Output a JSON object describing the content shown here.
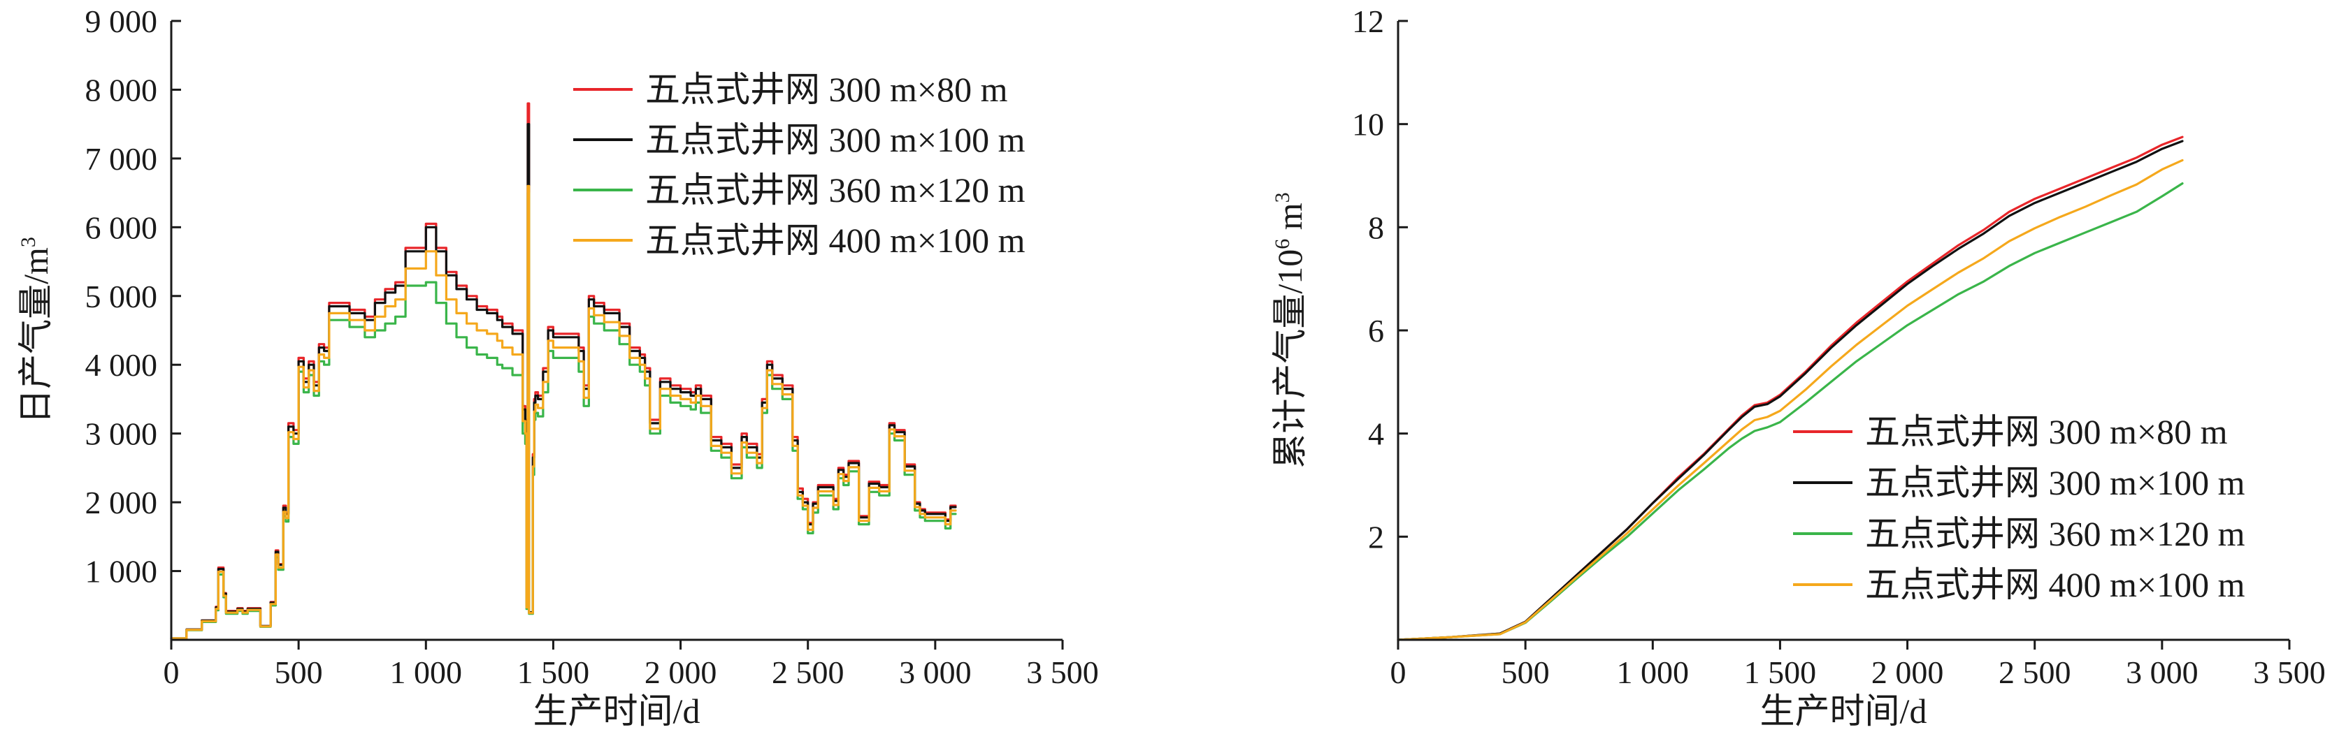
{
  "chart_data": [
    {
      "type": "line",
      "xlabel": "生产时间/d",
      "ylabel": "日产气量/m3",
      "xlim": [
        0,
        3500
      ],
      "ylim": [
        0,
        9000
      ],
      "xticks": [
        0,
        500,
        1000,
        1500,
        2000,
        2500,
        3000,
        3500
      ],
      "xtick_labels": [
        "0",
        "500",
        "1 000",
        "1 500",
        "2 000",
        "2 500",
        "3 000",
        "3 500"
      ],
      "yticks": [
        1000,
        2000,
        3000,
        4000,
        5000,
        6000,
        7000,
        8000,
        9000
      ],
      "ytick_labels": [
        "1 000",
        "2 000",
        "3 000",
        "4 000",
        "5 000",
        "6 000",
        "7 000",
        "8 000",
        "9 000"
      ],
      "legend_position": "top-right",
      "x": [
        0,
        60,
        120,
        175,
        185,
        205,
        215,
        260,
        280,
        300,
        350,
        370,
        390,
        410,
        420,
        440,
        450,
        460,
        480,
        500,
        520,
        540,
        560,
        580,
        600,
        620,
        700,
        760,
        800,
        840,
        880,
        920,
        960,
        1000,
        1040,
        1080,
        1120,
        1160,
        1200,
        1240,
        1280,
        1300,
        1340,
        1380,
        1390,
        1395,
        1400,
        1405,
        1420,
        1425,
        1430,
        1440,
        1460,
        1480,
        1500,
        1560,
        1600,
        1620,
        1640,
        1660,
        1700,
        1760,
        1800,
        1840,
        1860,
        1880,
        1920,
        1960,
        2000,
        2040,
        2060,
        2080,
        2120,
        2160,
        2200,
        2240,
        2260,
        2300,
        2320,
        2340,
        2360,
        2400,
        2440,
        2460,
        2480,
        2500,
        2520,
        2540,
        2580,
        2600,
        2620,
        2640,
        2660,
        2700,
        2740,
        2780,
        2800,
        2820,
        2840,
        2880,
        2920,
        2940,
        2960,
        3000,
        3040,
        3060,
        3080
      ],
      "series": [
        {
          "name": "五点式井网 300 m×80 m",
          "color": "#e8262a",
          "values": [
            20,
            150,
            280,
            480,
            1050,
            680,
            420,
            460,
            420,
            460,
            200,
            200,
            550,
            1300,
            1100,
            1950,
            1850,
            3150,
            3050,
            4100,
            3800,
            4050,
            3750,
            4300,
            4250,
            4900,
            4800,
            4700,
            4950,
            5100,
            5200,
            5700,
            5700,
            6050,
            5700,
            5350,
            5150,
            5000,
            4850,
            4800,
            4700,
            4600,
            4500,
            3400,
            3200,
            500,
            7800,
            400,
            2700,
            3500,
            3600,
            3550,
            3950,
            4550,
            4450,
            4450,
            4250,
            3700,
            5000,
            4900,
            4800,
            4600,
            4250,
            4150,
            3950,
            3200,
            3800,
            3700,
            3650,
            3600,
            3700,
            3550,
            2950,
            2850,
            2550,
            3000,
            2850,
            2700,
            3500,
            4050,
            3850,
            3700,
            2950,
            2200,
            2050,
            1700,
            2000,
            2250,
            2250,
            2050,
            2500,
            2400,
            2600,
            1800,
            2300,
            2250,
            2250,
            3150,
            3050,
            2550,
            2000,
            1900,
            1850,
            1850,
            1750,
            1950,
            1950
          ]
        },
        {
          "name": "五点式井网 300 m×100 m",
          "color": "#111111",
          "values": [
            20,
            150,
            280,
            470,
            1030,
            670,
            410,
            450,
            410,
            450,
            200,
            200,
            540,
            1280,
            1090,
            1920,
            1830,
            3100,
            3000,
            4050,
            3750,
            4000,
            3700,
            4250,
            4200,
            4850,
            4750,
            4650,
            4900,
            5050,
            5150,
            5650,
            5650,
            6000,
            5650,
            5300,
            5100,
            4950,
            4800,
            4750,
            4650,
            4550,
            4450,
            3350,
            3150,
            500,
            7500,
            400,
            2650,
            3450,
            3550,
            3500,
            3900,
            4500,
            4400,
            4400,
            4200,
            3650,
            4950,
            4850,
            4750,
            4550,
            4200,
            4100,
            3900,
            3150,
            3750,
            3650,
            3600,
            3550,
            3650,
            3500,
            2900,
            2800,
            2500,
            2950,
            2800,
            2650,
            3450,
            4000,
            3800,
            3650,
            2900,
            2150,
            2000,
            1680,
            1980,
            2220,
            2220,
            2020,
            2470,
            2370,
            2570,
            1780,
            2270,
            2220,
            2220,
            3120,
            3020,
            2520,
            1980,
            1880,
            1830,
            1830,
            1730,
            1930,
            1930
          ]
        },
        {
          "name": "五点式井网 360 m×120 m",
          "color": "#3ab54a",
          "values": [
            20,
            140,
            260,
            430,
            950,
            620,
            380,
            420,
            380,
            420,
            190,
            190,
            500,
            1200,
            1020,
            1800,
            1720,
            2950,
            2850,
            3900,
            3600,
            3850,
            3550,
            4050,
            4000,
            4650,
            4550,
            4400,
            4500,
            4600,
            4700,
            5150,
            5150,
            5200,
            4900,
            4600,
            4400,
            4250,
            4150,
            4100,
            4000,
            3950,
            3850,
            3000,
            2850,
            450,
            6500,
            380,
            2400,
            3200,
            3300,
            3250,
            3600,
            4200,
            4100,
            4100,
            3900,
            3400,
            4700,
            4600,
            4500,
            4300,
            4000,
            3900,
            3700,
            3000,
            3550,
            3450,
            3400,
            3350,
            3450,
            3300,
            2750,
            2650,
            2350,
            2800,
            2650,
            2500,
            3300,
            3850,
            3650,
            3500,
            2750,
            2050,
            1900,
            1550,
            1850,
            2100,
            2100,
            1900,
            2350,
            2250,
            2450,
            1680,
            2150,
            2100,
            2100,
            3000,
            2900,
            2400,
            1880,
            1780,
            1730,
            1730,
            1620,
            1830,
            1830
          ]
        },
        {
          "name": "五点式井网 400 m×100 m",
          "color": "#f5a81c",
          "values": [
            20,
            145,
            270,
            450,
            990,
            640,
            395,
            435,
            395,
            435,
            195,
            195,
            520,
            1240,
            1050,
            1860,
            1770,
            3020,
            2920,
            3970,
            3670,
            3920,
            3620,
            4150,
            4100,
            4750,
            4650,
            4500,
            4700,
            4850,
            4950,
            5400,
            5400,
            5650,
            5300,
            4950,
            4750,
            4600,
            4500,
            4450,
            4350,
            4250,
            4150,
            3180,
            3000,
            470,
            6600,
            390,
            2520,
            3320,
            3420,
            3370,
            3750,
            4350,
            4250,
            4250,
            4050,
            3520,
            4820,
            4720,
            4620,
            4420,
            4100,
            4000,
            3800,
            3070,
            3650,
            3550,
            3500,
            3450,
            3550,
            3400,
            2820,
            2720,
            2420,
            2870,
            2720,
            2570,
            3370,
            3920,
            3720,
            3570,
            2820,
            2100,
            1950,
            1600,
            1920,
            2160,
            2160,
            1960,
            2410,
            2310,
            2510,
            1730,
            2210,
            2160,
            2160,
            3060,
            2960,
            2460,
            1930,
            1830,
            1780,
            1780,
            1680,
            1880,
            1880
          ]
        }
      ]
    },
    {
      "type": "line",
      "xlabel": "生产时间/d",
      "ylabel": "累计产气量/10⁶ m³",
      "xlim": [
        0,
        3500
      ],
      "ylim": [
        0,
        12
      ],
      "xticks": [
        0,
        500,
        1000,
        1500,
        2000,
        2500,
        3000,
        3500
      ],
      "xtick_labels": [
        "0",
        "500",
        "1 000",
        "1 500",
        "2 000",
        "2 500",
        "3 000",
        "3 500"
      ],
      "yticks": [
        2,
        4,
        6,
        8,
        10,
        12
      ],
      "ytick_labels": [
        "2",
        "4",
        "6",
        "8",
        "10",
        "12"
      ],
      "legend_position": "bottom-right",
      "x": [
        0,
        200,
        400,
        500,
        600,
        700,
        800,
        900,
        1000,
        1100,
        1200,
        1300,
        1350,
        1400,
        1450,
        1500,
        1600,
        1700,
        1800,
        1900,
        2000,
        2100,
        2200,
        2300,
        2400,
        2500,
        2600,
        2700,
        2800,
        2900,
        3000,
        3080
      ],
      "series": [
        {
          "name": "五点式井网 300 m×80 m",
          "color": "#e8262a",
          "values": [
            0,
            0.05,
            0.12,
            0.35,
            0.8,
            1.25,
            1.7,
            2.15,
            2.65,
            3.15,
            3.6,
            4.1,
            4.35,
            4.55,
            4.6,
            4.75,
            5.2,
            5.7,
            6.15,
            6.55,
            6.95,
            7.3,
            7.65,
            7.95,
            8.3,
            8.55,
            8.75,
            8.95,
            9.15,
            9.35,
            9.6,
            9.75
          ]
        },
        {
          "name": "五点式井网 300 m×100 m",
          "color": "#111111",
          "values": [
            0,
            0.05,
            0.12,
            0.35,
            0.8,
            1.25,
            1.7,
            2.15,
            2.65,
            3.12,
            3.58,
            4.08,
            4.32,
            4.52,
            4.57,
            4.72,
            5.17,
            5.66,
            6.1,
            6.5,
            6.9,
            7.25,
            7.58,
            7.88,
            8.22,
            8.47,
            8.67,
            8.87,
            9.07,
            9.27,
            9.52,
            9.67
          ]
        },
        {
          "name": "五点式井网 360 m×120 m",
          "color": "#3ab54a",
          "values": [
            0,
            0.05,
            0.11,
            0.33,
            0.75,
            1.18,
            1.6,
            2.0,
            2.45,
            2.9,
            3.3,
            3.72,
            3.9,
            4.05,
            4.12,
            4.22,
            4.6,
            5.0,
            5.4,
            5.75,
            6.1,
            6.4,
            6.7,
            6.95,
            7.25,
            7.5,
            7.7,
            7.9,
            8.1,
            8.3,
            8.6,
            8.85
          ]
        },
        {
          "name": "五点式井网 400 m×100 m",
          "color": "#f5a81c",
          "values": [
            0,
            0.05,
            0.11,
            0.34,
            0.77,
            1.21,
            1.64,
            2.07,
            2.53,
            2.99,
            3.42,
            3.86,
            4.08,
            4.26,
            4.32,
            4.44,
            4.85,
            5.3,
            5.72,
            6.1,
            6.48,
            6.8,
            7.12,
            7.4,
            7.73,
            7.98,
            8.2,
            8.4,
            8.62,
            8.83,
            9.12,
            9.3
          ]
        }
      ]
    }
  ]
}
